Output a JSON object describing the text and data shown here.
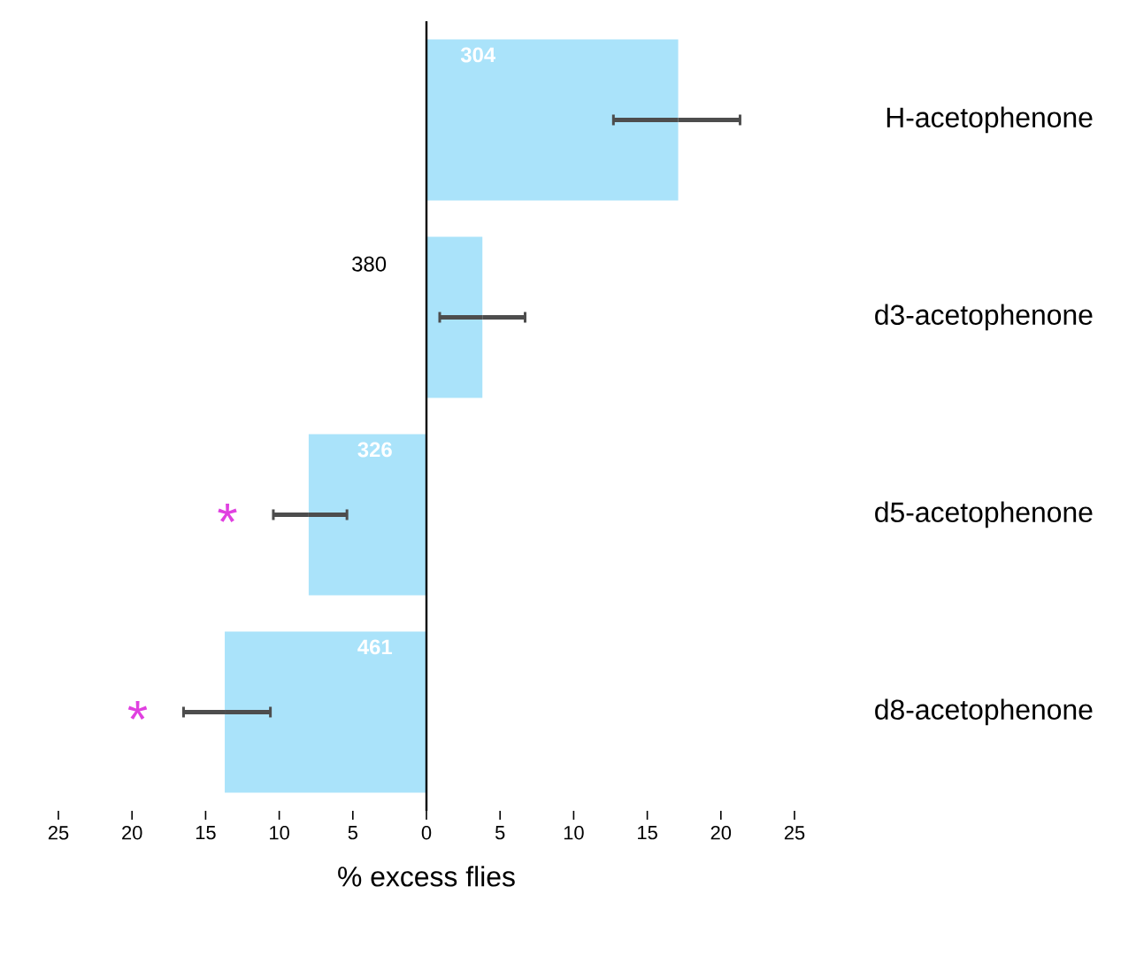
{
  "chart_data": {
    "type": "bar",
    "orientation": "horizontal",
    "xlabel": "% excess flies",
    "categories": [
      "H-acetophenone",
      "d3-acetophenone",
      "d5-acetophenone",
      "d8-acetophenone"
    ],
    "values": [
      17.1,
      3.8,
      -8.0,
      -13.7
    ],
    "color": "#aae3fa",
    "errors": [
      [
        12.7,
        21.3
      ],
      [
        0.9,
        6.7
      ],
      [
        -10.4,
        -5.4
      ],
      [
        -16.5,
        -10.6
      ]
    ],
    "xlim": [
      -25,
      25
    ],
    "xticks": [
      {
        "value": -25,
        "label": "25"
      },
      {
        "value": -20,
        "label": "20"
      },
      {
        "value": -15,
        "label": "15"
      },
      {
        "value": -10,
        "label": "10"
      },
      {
        "value": -5,
        "label": "5"
      },
      0,
      5,
      10,
      15,
      20,
      25
    ],
    "annotations": [
      "304",
      "380",
      "326",
      "461",
      "*",
      "*"
    ]
  }
}
